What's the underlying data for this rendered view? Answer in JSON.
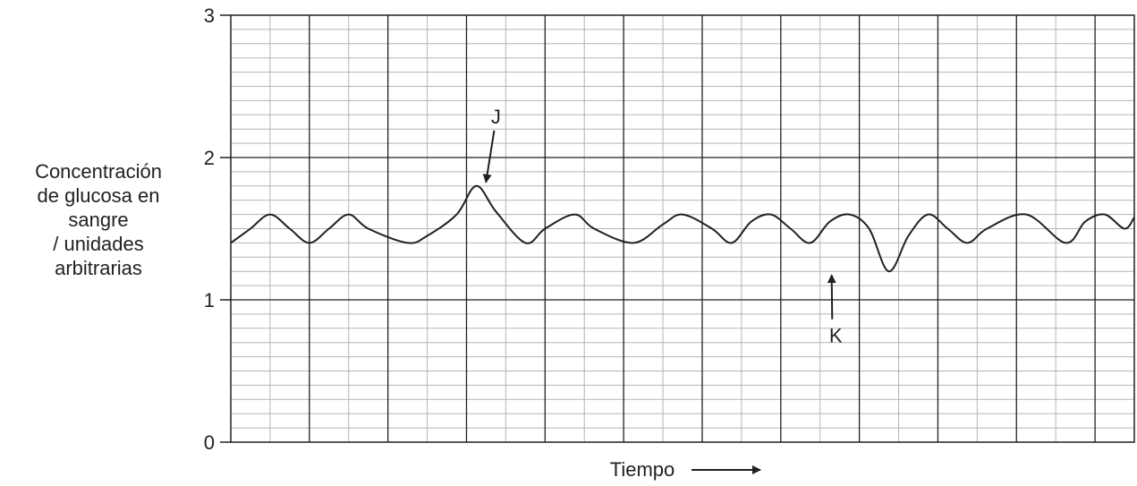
{
  "chart_data": {
    "type": "line",
    "title": "",
    "xlabel": "Tiempo",
    "ylabel_lines": [
      "Concentración",
      "de glucosa en",
      "sangre",
      "/ unidades",
      "arbitrarias"
    ],
    "ylim": [
      0,
      3
    ],
    "yticks": [
      "0",
      "1",
      "2",
      "3"
    ],
    "x_minor_divisions": 23,
    "y_minor_divisions": 30,
    "grid": true,
    "series": [
      {
        "x": [
          0,
          0.5,
          1.0,
          1.5,
          2.0,
          2.5,
          3.0,
          3.5,
          4.5,
          5.0,
          5.75,
          6.25,
          6.75,
          7.5,
          8.0,
          8.75,
          9.25,
          10.25,
          11.0,
          11.5,
          12.25,
          12.75,
          13.25,
          13.75,
          14.25,
          14.75,
          15.25,
          15.75,
          16.25,
          16.75,
          17.25,
          17.75,
          18.25,
          18.75,
          19.25,
          20.25,
          21.25,
          21.75,
          22.25,
          22.75,
          23.0
        ],
        "y": [
          1.4,
          1.5,
          1.6,
          1.5,
          1.4,
          1.5,
          1.6,
          1.5,
          1.4,
          1.45,
          1.6,
          1.8,
          1.62,
          1.4,
          1.5,
          1.6,
          1.5,
          1.4,
          1.53,
          1.6,
          1.5,
          1.4,
          1.55,
          1.6,
          1.5,
          1.4,
          1.55,
          1.6,
          1.5,
          1.2,
          1.45,
          1.6,
          1.5,
          1.4,
          1.5,
          1.6,
          1.4,
          1.55,
          1.6,
          1.5,
          1.58
        ]
      }
    ],
    "annotations": [
      {
        "label": "J",
        "x": 6.45,
        "y": 1.8,
        "text_x": 6.75,
        "text_y": 2.24
      },
      {
        "label": "K",
        "x": 15.25,
        "y": 1.2,
        "text_x": 15.4,
        "text_y": 0.7
      }
    ]
  }
}
